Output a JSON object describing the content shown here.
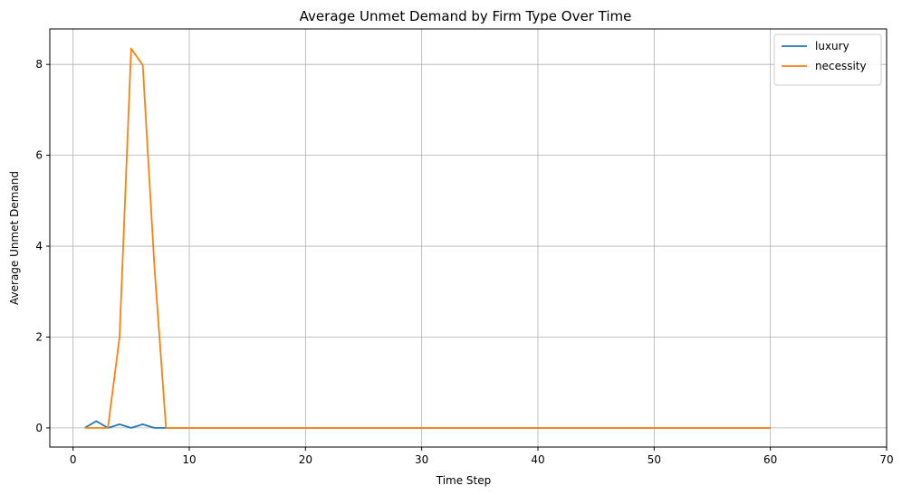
{
  "chart_data": {
    "type": "line",
    "title": "Average Unmet Demand by Firm Type Over Time",
    "xlabel": "Time Step",
    "ylabel": "Average Unmet Demand",
    "xlim": [
      -2,
      70
    ],
    "ylim": [
      -0.42,
      8.78
    ],
    "xticks": [
      0,
      10,
      20,
      30,
      40,
      50,
      60,
      70
    ],
    "yticks": [
      0,
      2,
      4,
      6,
      8
    ],
    "xtick_labels": [
      "0",
      "10",
      "20",
      "30",
      "40",
      "50",
      "60",
      "70"
    ],
    "ytick_labels": [
      "0",
      "2",
      "4",
      "6",
      "8"
    ],
    "grid": true,
    "legend_position": "top-right",
    "x": [
      1,
      2,
      3,
      4,
      5,
      6,
      7,
      8,
      9,
      10,
      11,
      12,
      13,
      14,
      15,
      16,
      17,
      18,
      19,
      20,
      21,
      22,
      23,
      24,
      25,
      26,
      27,
      28,
      29,
      30,
      31,
      32,
      33,
      34,
      35,
      36,
      37,
      38,
      39,
      40,
      41,
      42,
      43,
      44,
      45,
      46,
      47,
      48,
      49,
      50,
      51,
      52,
      53,
      54,
      55,
      56,
      57,
      58,
      59,
      60
    ],
    "series": [
      {
        "name": "luxury",
        "color": "#1f77b4",
        "values": [
          0,
          0.15,
          0,
          0.08,
          0,
          0.08,
          0,
          0,
          0,
          0,
          0,
          0,
          0,
          0,
          0,
          0,
          0,
          0,
          0,
          0,
          0,
          0,
          0,
          0,
          0,
          0,
          0,
          0,
          0,
          0,
          0,
          0,
          0,
          0,
          0,
          0,
          0,
          0,
          0,
          0,
          0,
          0,
          0,
          0,
          0,
          0,
          0,
          0,
          0,
          0,
          0,
          0,
          0,
          0,
          0,
          0,
          0,
          0,
          0,
          0
        ]
      },
      {
        "name": "necessity",
        "color": "#ff7f0e",
        "values": [
          0,
          0,
          0,
          2.0,
          8.35,
          7.98,
          3.55,
          0,
          0,
          0,
          0,
          0,
          0,
          0,
          0,
          0,
          0,
          0,
          0,
          0,
          0,
          0,
          0,
          0,
          0,
          0,
          0,
          0,
          0,
          0,
          0,
          0,
          0,
          0,
          0,
          0,
          0,
          0,
          0,
          0,
          0,
          0,
          0,
          0,
          0,
          0,
          0,
          0,
          0,
          0,
          0,
          0,
          0,
          0,
          0,
          0,
          0,
          0,
          0,
          0
        ]
      }
    ]
  }
}
